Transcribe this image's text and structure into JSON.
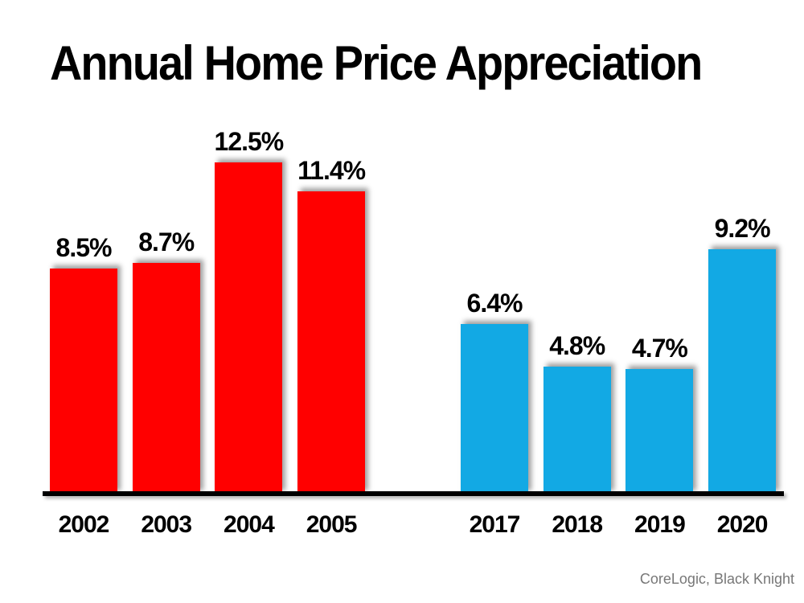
{
  "chart_data": {
    "type": "bar",
    "title": "Annual Home Price Appreciation",
    "source": "CoreLogic, Black Knight",
    "categories": [
      "2002",
      "2003",
      "2004",
      "2005",
      "2017",
      "2018",
      "2019",
      "2020"
    ],
    "values": [
      8.5,
      8.7,
      12.5,
      11.4,
      6.4,
      4.8,
      4.7,
      9.2
    ],
    "data_labels": [
      "8.5%",
      "8.7%",
      "12.5%",
      "11.4%",
      "6.4%",
      "4.8%",
      "4.7%",
      "9.2%"
    ],
    "bar_colors": [
      "#FF0000",
      "#FF0000",
      "#FF0000",
      "#FF0000",
      "#12A9E4",
      "#12A9E4",
      "#12A9E4",
      "#12A9E4"
    ],
    "groups": [
      {
        "name": "2002-2005",
        "color": "#FF0000"
      },
      {
        "name": "2017-2020",
        "color": "#12A9E4"
      }
    ],
    "ylim": [
      0,
      14
    ],
    "grid": false,
    "legend": false,
    "xlabel": "",
    "ylabel": "",
    "axis_color": "#000000",
    "label_color": "#000000",
    "source_color": "#777777"
  }
}
